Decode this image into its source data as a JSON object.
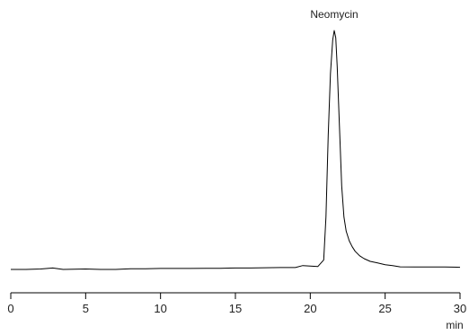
{
  "chart_data": {
    "type": "line",
    "title": "",
    "xlabel": "",
    "ylabel": "",
    "x_unit": "min",
    "xlim": [
      0,
      30
    ],
    "ylim": [
      0,
      1
    ],
    "x_ticks": [
      0,
      5,
      10,
      15,
      20,
      25,
      30
    ],
    "x_tick_labels": [
      "0",
      "5",
      "10",
      "15",
      "20",
      "25",
      "30"
    ],
    "grid": false,
    "legend": "none",
    "line_color": "#000000",
    "annotations": [
      {
        "text": "Neomycin",
        "x": 21.6,
        "y": 1.0
      }
    ],
    "series": [
      {
        "x": [
          0,
          1,
          2,
          2.8,
          3.5,
          5,
          6,
          7,
          8,
          9,
          10,
          11,
          12,
          13,
          14,
          15,
          16,
          17,
          18,
          19,
          19.5,
          20.5,
          20.9,
          21.05,
          21.2,
          21.35,
          21.5,
          21.6,
          21.7,
          21.8,
          21.95,
          22.1,
          22.25,
          22.4,
          22.6,
          22.8,
          23.0,
          23.3,
          23.6,
          24.0,
          24.5,
          25.0,
          25.5,
          26.0,
          27.0,
          28.0,
          29.0,
          30.0
        ],
        "y": [
          0.0,
          0.0,
          0.002,
          0.006,
          0.0,
          0.002,
          0.0,
          0.0,
          0.003,
          0.003,
          0.004,
          0.004,
          0.004,
          0.005,
          0.005,
          0.006,
          0.006,
          0.007,
          0.008,
          0.008,
          0.016,
          0.012,
          0.04,
          0.22,
          0.56,
          0.82,
          0.96,
          1.0,
          0.97,
          0.85,
          0.6,
          0.35,
          0.22,
          0.16,
          0.12,
          0.095,
          0.076,
          0.057,
          0.045,
          0.034,
          0.027,
          0.02,
          0.016,
          0.011,
          0.01,
          0.01,
          0.01,
          0.009
        ]
      }
    ]
  }
}
